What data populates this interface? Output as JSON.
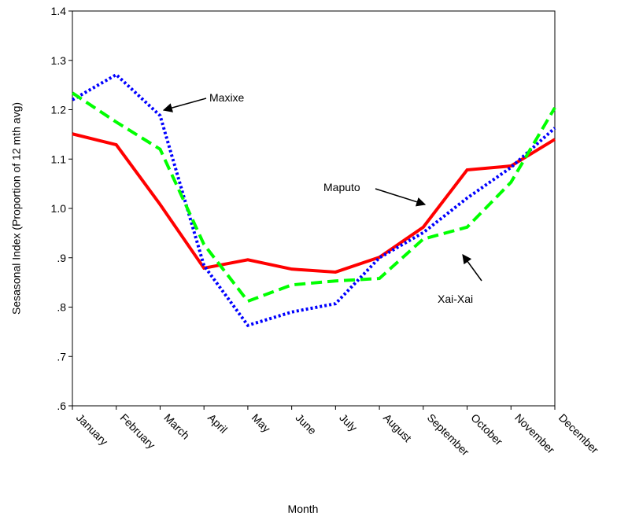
{
  "chart_data": {
    "type": "line",
    "x_label": "Month",
    "y_label": "Sesasonal Index (Proportion of 12 mth avg)",
    "categories": [
      "January",
      "February",
      "March",
      "April",
      "May",
      "June",
      "July",
      "August",
      "September",
      "October",
      "November",
      "December"
    ],
    "series": [
      {
        "name": "Maputo",
        "color": "#ff0000",
        "dash": "solid",
        "values": [
          1.151,
          1.129,
          1.008,
          0.879,
          0.896,
          0.877,
          0.871,
          0.901,
          0.962,
          1.078,
          1.086,
          1.14
        ]
      },
      {
        "name": "Maxixe",
        "color": "#0000ff",
        "dash": "dotted",
        "values": [
          1.22,
          1.271,
          1.188,
          0.884,
          0.763,
          0.79,
          0.807,
          0.9,
          0.951,
          1.021,
          1.083,
          1.163
        ]
      },
      {
        "name": "Xai-Xai",
        "color": "#00ff00",
        "dash": "dashed",
        "values": [
          1.234,
          1.175,
          1.12,
          0.927,
          0.812,
          0.845,
          0.853,
          0.858,
          0.938,
          0.962,
          1.053,
          1.204
        ]
      }
    ],
    "ylim": [
      0.6,
      1.4
    ],
    "yticks": [
      {
        "value": 0.6,
        "label": ".6"
      },
      {
        "value": 0.7,
        "label": ".7"
      },
      {
        "value": 0.8,
        "label": ".8"
      },
      {
        "value": 0.9,
        "label": ".9"
      },
      {
        "value": 1,
        "label": "1.0"
      },
      1.1,
      1.2,
      1.3,
      1.4
    ],
    "grid": false
  }
}
